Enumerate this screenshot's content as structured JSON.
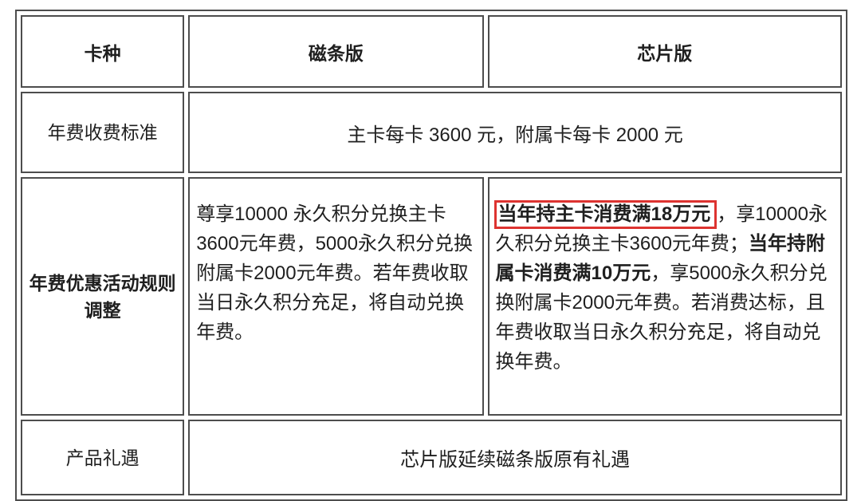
{
  "page": {
    "background": "#ffffff",
    "text_color": "#1f1f1f",
    "border_color": "#4d4d4d",
    "highlight_color": "#dd3330"
  },
  "table": {
    "header": {
      "card_type": "卡种",
      "magnetic": "磁条版",
      "chip": "芯片版"
    },
    "rows": {
      "annual_fee": {
        "label": "年费收费标准",
        "value": "主卡每卡 3600 元，附属卡每卡 2000 元"
      },
      "discount_rules": {
        "label": "年费优惠活动规则调整",
        "magnetic_text": "尊享10000 永久积分兑换主卡3600元年费，5000永久积分兑换附属卡2000元年费。若年费收取当日永久积分充足，将自动兑换年费。",
        "chip_segments": [
          {
            "text": "当年持主卡消费满18万元",
            "bold": true,
            "boxed": true
          },
          {
            "text": "，享10000永久积分兑换主卡3600元年费；",
            "bold": false,
            "boxed": false
          },
          {
            "text": "当年持附属卡消费满10万元",
            "bold": true,
            "boxed": false
          },
          {
            "text": "，享5000永久积分兑换附属卡2000元年费。若消费达标，且年费收取当日永久积分充足，将自动兑换年费。",
            "bold": false,
            "boxed": false
          }
        ]
      },
      "product_benefits": {
        "label": "产品礼遇",
        "value": "芯片版延续磁条版原有礼遇"
      }
    }
  }
}
